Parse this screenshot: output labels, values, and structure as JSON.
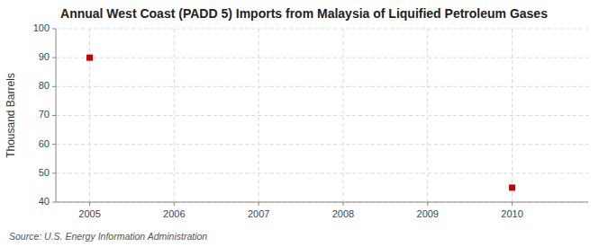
{
  "chart_data": {
    "type": "scatter",
    "title": "Annual West Coast (PADD 5) Imports from Malaysia of Liquified Petroleum Gases",
    "ylabel": "Thousand Barrels",
    "annotations": [
      "Source: U.S. Energy Information Administration"
    ],
    "x": [
      2005,
      2010
    ],
    "values": [
      90,
      45
    ],
    "color": "#cc0000",
    "marker": "square",
    "xlim": [
      2004.6,
      2010.9
    ],
    "ylim": [
      40,
      100
    ],
    "xticks": [
      2005,
      2006,
      2007,
      2008,
      2009,
      2010
    ],
    "yticks": [
      40,
      50,
      60,
      70,
      80,
      90,
      100
    ],
    "grid": true
  }
}
